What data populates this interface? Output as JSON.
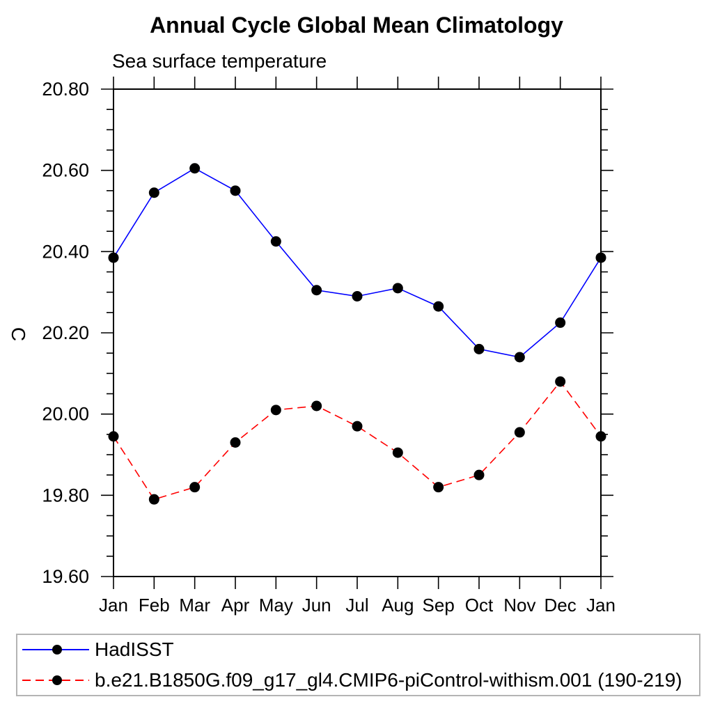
{
  "header": {
    "title": "Annual Cycle Global Mean Climatology",
    "subtitle": "Sea surface temperature"
  },
  "axes": {
    "y_title": "C",
    "y_tick_labels": [
      "19.60",
      "19.80",
      "20.00",
      "20.20",
      "20.40",
      "20.60",
      "20.80"
    ],
    "x_tick_labels": [
      "Jan",
      "Feb",
      "Mar",
      "Apr",
      "May",
      "Jun",
      "Jul",
      "Aug",
      "Sep",
      "Oct",
      "Nov",
      "Dec",
      "Jan"
    ]
  },
  "chart_data": {
    "type": "line",
    "title": "Annual Cycle Global Mean Climatology",
    "subtitle": "Sea surface temperature",
    "xlabel": "",
    "ylabel": "C",
    "x_categories": [
      "Jan",
      "Feb",
      "Mar",
      "Apr",
      "May",
      "Jun",
      "Jul",
      "Aug",
      "Sep",
      "Oct",
      "Nov",
      "Dec",
      "Jan"
    ],
    "ylim": [
      19.6,
      20.8
    ],
    "y_major_ticks": [
      19.6,
      19.8,
      20.0,
      20.2,
      20.4,
      20.6,
      20.8
    ],
    "y_minor_step": 0.05,
    "grid": false,
    "legend_position": "bottom",
    "marker": "filled-circle",
    "marker_color": "#000000",
    "series": [
      {
        "name": "HadISST",
        "color": "#0000ff",
        "style": "solid",
        "values": [
          20.385,
          20.545,
          20.605,
          20.55,
          20.425,
          20.305,
          20.29,
          20.31,
          20.265,
          20.16,
          20.14,
          20.225,
          20.385
        ]
      },
      {
        "name": "b.e21.B1850G.f09_g17_gl4.CMIP6-piControl-withism.001 (190-219)",
        "color": "#ff0000",
        "style": "dashed",
        "values": [
          19.945,
          19.79,
          19.82,
          19.93,
          20.01,
          20.02,
          19.97,
          19.905,
          19.82,
          19.85,
          19.955,
          20.08,
          19.945
        ]
      }
    ]
  },
  "legend": {
    "items": [
      {
        "label": "HadISST",
        "color": "#0000ff",
        "style": "solid"
      },
      {
        "label": "b.e21.B1850G.f09_g17_gl4.CMIP6-piControl-withism.001 (190-219)",
        "color": "#ff0000",
        "style": "dashed"
      }
    ]
  }
}
